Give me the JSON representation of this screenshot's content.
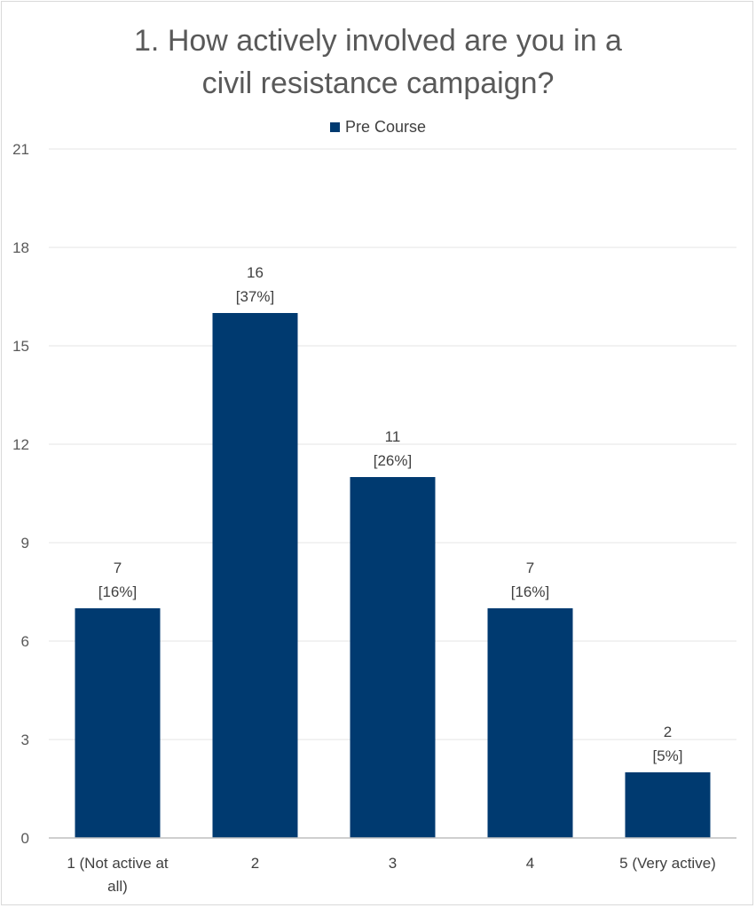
{
  "chart_data": {
    "type": "bar",
    "title_line1": "1. How actively involved are you in a",
    "title_line2": "civil resistance campaign?",
    "categories": [
      "1 (Not active at all)",
      "2",
      "3",
      "4",
      "5 (Very active)"
    ],
    "category_lines": [
      [
        "1 (Not active at",
        "all)"
      ],
      [
        "2"
      ],
      [
        "3"
      ],
      [
        "4"
      ],
      [
        "5 (Very active)"
      ]
    ],
    "series": [
      {
        "name": "Pre Course",
        "values": [
          7,
          16,
          11,
          7,
          2
        ],
        "percent_labels": [
          "[16%]",
          "[37%]",
          "[26%]",
          "[16%]",
          "[5%]"
        ]
      }
    ],
    "ylim": [
      0,
      21
    ],
    "yticks": [
      0,
      3,
      6,
      9,
      12,
      15,
      18,
      21
    ],
    "grid": true,
    "legend_position": "top",
    "colors": {
      "bar": "#003a70",
      "grid": "#e6e6e6",
      "axis": "#bfbfbf"
    }
  }
}
